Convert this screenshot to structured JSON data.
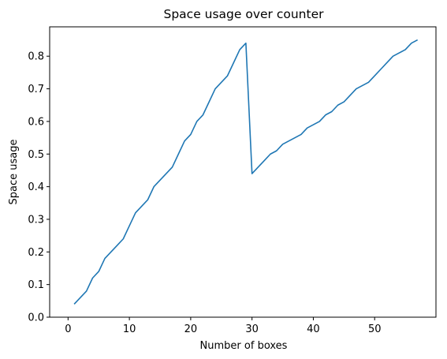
{
  "chart_data": {
    "type": "line",
    "title": "Space usage over counter",
    "xlabel": "Number of boxes",
    "ylabel": "Space usage",
    "xlim": [
      -3.0,
      60.0
    ],
    "ylim": [
      0.0,
      0.89
    ],
    "xticks": [
      0,
      10,
      20,
      30,
      40,
      50
    ],
    "yticks": [
      0.0,
      0.1,
      0.2,
      0.3,
      0.4,
      0.5,
      0.6,
      0.7,
      0.8
    ],
    "ytick_labels": [
      "0.0",
      "0.1",
      "0.2",
      "0.3",
      "0.4",
      "0.5",
      "0.6",
      "0.7",
      "0.8"
    ],
    "grid": false,
    "series": [
      {
        "color": "#1f77b4",
        "x": [
          1,
          2,
          3,
          4,
          5,
          6,
          7,
          8,
          9,
          10,
          11,
          12,
          13,
          14,
          15,
          16,
          17,
          18,
          19,
          20,
          21,
          22,
          23,
          24,
          25,
          26,
          27,
          28,
          29,
          30,
          31,
          32,
          33,
          34,
          35,
          36,
          37,
          38,
          39,
          40,
          41,
          42,
          43,
          44,
          45,
          46,
          47,
          48,
          49,
          50,
          51,
          52,
          53,
          54,
          55,
          56,
          57
        ],
        "y": [
          0.04,
          0.06,
          0.08,
          0.12,
          0.14,
          0.18,
          0.2,
          0.22,
          0.24,
          0.28,
          0.32,
          0.34,
          0.36,
          0.4,
          0.42,
          0.44,
          0.46,
          0.5,
          0.54,
          0.56,
          0.6,
          0.62,
          0.66,
          0.7,
          0.72,
          0.74,
          0.78,
          0.82,
          0.84,
          0.44,
          0.46,
          0.48,
          0.5,
          0.51,
          0.53,
          0.54,
          0.55,
          0.56,
          0.58,
          0.59,
          0.6,
          0.62,
          0.63,
          0.65,
          0.66,
          0.68,
          0.7,
          0.71,
          0.72,
          0.74,
          0.76,
          0.78,
          0.8,
          0.81,
          0.82,
          0.84,
          0.85
        ]
      }
    ]
  }
}
